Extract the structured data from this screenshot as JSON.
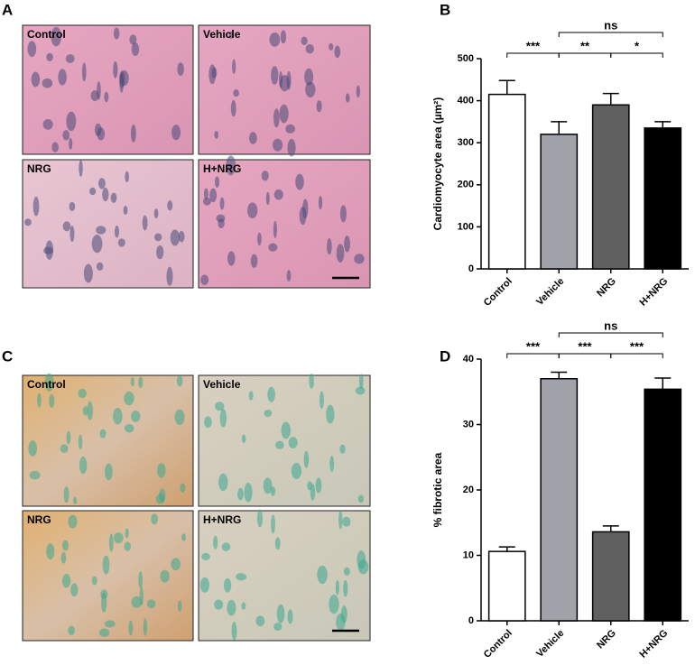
{
  "panel_labels": [
    "A",
    "B",
    "C",
    "D"
  ],
  "micrographs": [
    {
      "labels": [
        "Control",
        "Vehicle",
        "NRG",
        "H+NRG"
      ]
    },
    {
      "labels": [
        "Control",
        "Vehicle",
        "NRG",
        "H+NRG"
      ]
    }
  ],
  "chart_data": [
    {
      "type": "bar",
      "y_label": "Cardiomyocyte area (µm²)",
      "categories": [
        "Control",
        "Vehicle",
        "NRG",
        "H+NRG"
      ],
      "values": [
        415,
        320,
        390,
        335
      ],
      "errors": [
        33,
        30,
        27,
        15
      ],
      "colors": [
        "#ffffff",
        "#a2a2aa",
        "#606060",
        "#000000"
      ],
      "ylim": [
        0,
        500
      ],
      "yticks": [
        0,
        100,
        200,
        300,
        400,
        500
      ],
      "annotations": [
        {
          "from": 0,
          "to": 1,
          "label": "***"
        },
        {
          "from": 1,
          "to": 2,
          "label": "**"
        },
        {
          "from": 2,
          "to": 3,
          "label": "*"
        },
        {
          "from": 1,
          "to": 3,
          "label": "ns"
        }
      ]
    },
    {
      "type": "bar",
      "y_label": "% fibrotic area",
      "categories": [
        "Control",
        "Vehicle",
        "NRG",
        "H+NRG"
      ],
      "values": [
        10.6,
        37,
        13.6,
        35.4
      ],
      "errors": [
        0.7,
        1.0,
        0.9,
        1.7
      ],
      "colors": [
        "#ffffff",
        "#a2a2aa",
        "#606060",
        "#000000"
      ],
      "ylim": [
        0,
        40
      ],
      "yticks": [
        0,
        10,
        20,
        30,
        40
      ],
      "annotations": [
        {
          "from": 0,
          "to": 1,
          "label": "***"
        },
        {
          "from": 1,
          "to": 2,
          "label": "***"
        },
        {
          "from": 2,
          "to": 3,
          "label": "***"
        },
        {
          "from": 1,
          "to": 3,
          "label": "ns"
        }
      ]
    }
  ]
}
